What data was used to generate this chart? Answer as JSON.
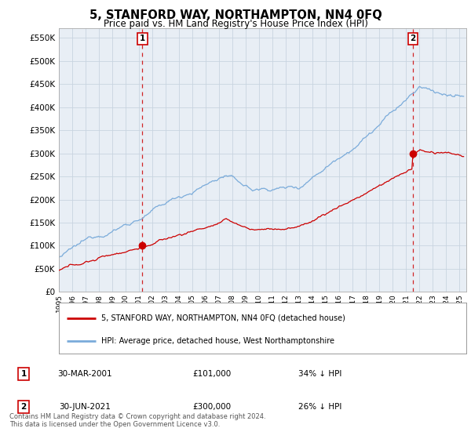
{
  "title": "5, STANFORD WAY, NORTHAMPTON, NN4 0FQ",
  "subtitle": "Price paid vs. HM Land Registry's House Price Index (HPI)",
  "ylabel_ticks": [
    "£0",
    "£50K",
    "£100K",
    "£150K",
    "£200K",
    "£250K",
    "£300K",
    "£350K",
    "£400K",
    "£450K",
    "£500K",
    "£550K"
  ],
  "ytick_values": [
    0,
    50000,
    100000,
    150000,
    200000,
    250000,
    300000,
    350000,
    400000,
    450000,
    500000,
    550000
  ],
  "ylim": [
    0,
    570000
  ],
  "xlim_start": 1995.0,
  "xlim_end": 2025.5,
  "hpi_color": "#7aabda",
  "price_color": "#cc0000",
  "marker1_date": 2001.25,
  "marker1_price": 101000,
  "marker2_date": 2021.5,
  "marker2_price": 300000,
  "vline_color": "#cc0000",
  "chart_bg": "#e8eef5",
  "legend_label_price": "5, STANFORD WAY, NORTHAMPTON, NN4 0FQ (detached house)",
  "legend_label_hpi": "HPI: Average price, detached house, West Northamptonshire",
  "table_rows": [
    {
      "num": "1",
      "date": "30-MAR-2001",
      "price": "£101,000",
      "pct": "34% ↓ HPI"
    },
    {
      "num": "2",
      "date": "30-JUN-2021",
      "price": "£300,000",
      "pct": "26% ↓ HPI"
    }
  ],
  "footnote": "Contains HM Land Registry data © Crown copyright and database right 2024.\nThis data is licensed under the Open Government Licence v3.0.",
  "background_color": "#ffffff",
  "grid_color": "#c8d4e0",
  "xtick_years": [
    1995,
    1996,
    1997,
    1998,
    1999,
    2000,
    2001,
    2002,
    2003,
    2004,
    2005,
    2006,
    2007,
    2008,
    2009,
    2010,
    2011,
    2012,
    2013,
    2014,
    2015,
    2016,
    2017,
    2018,
    2019,
    2020,
    2021,
    2022,
    2023,
    2024,
    2025
  ]
}
